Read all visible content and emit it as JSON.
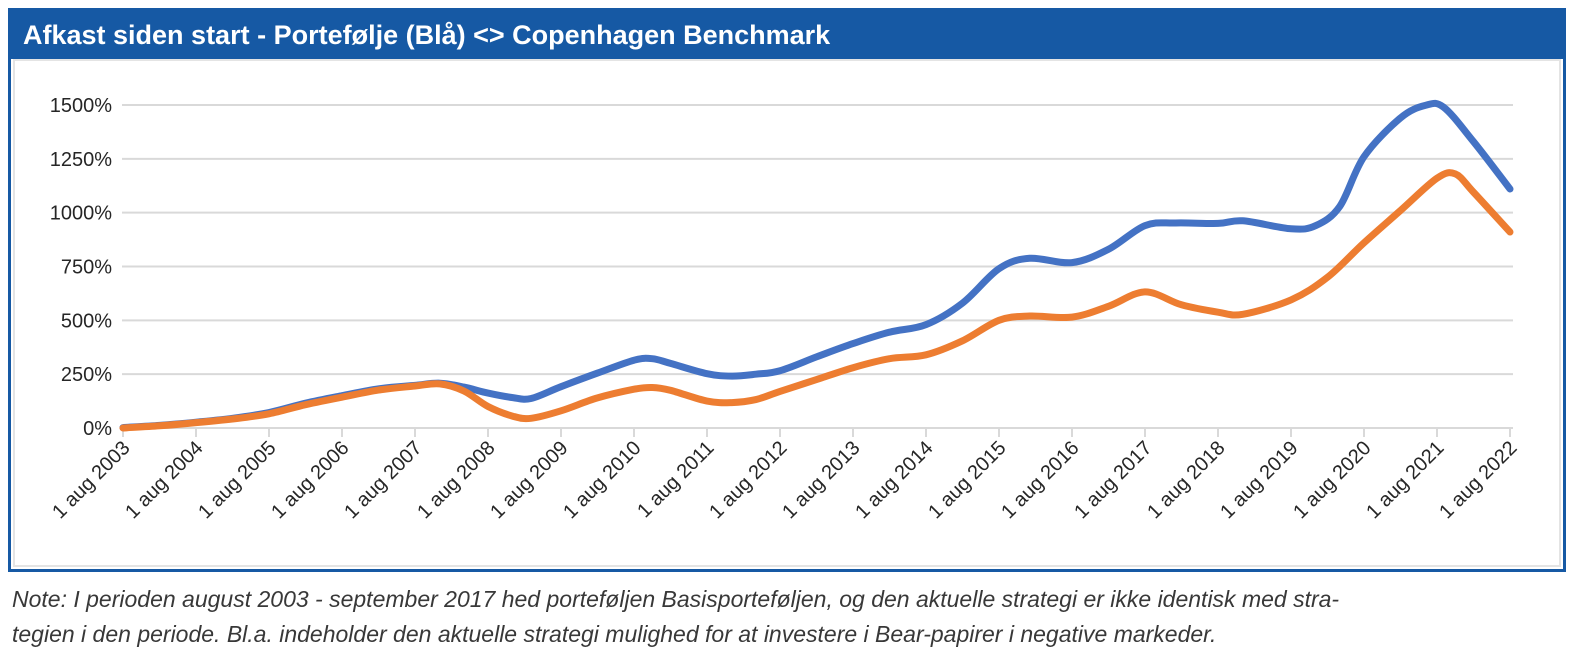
{
  "header": {
    "title": "Afkast siden start - Portefølje (Blå) <> Copenhagen Benchmark"
  },
  "note": {
    "line1": "Note: I perioden august 2003 - september 2017 hed porteføljen Basisporteføljen, og den aktuelle strategi er ikke identisk med stra-",
    "line2": "tegien i den periode. Bl.a. indeholder den aktuelle strategi mulighed for at investere i Bear-papirer i negative markeder."
  },
  "colors": {
    "header_bg": "#1659A4",
    "panel_border": "#1659A4",
    "grid": "#D9D9D9",
    "axis_text": "#262626",
    "portfolio_line": "#4472C4",
    "benchmark_line": "#ED7D31"
  },
  "chart_data": {
    "type": "line",
    "title": "Afkast siden start - Portefølje (Blå) <> Copenhagen Benchmark",
    "xlabel": "",
    "ylabel": "",
    "ylim": [
      0,
      1500
    ],
    "y_tick_labels": [
      "0%",
      "250%",
      "500%",
      "750%",
      "1000%",
      "1250%",
      "1500%"
    ],
    "x_range": [
      2003.58,
      2022.58
    ],
    "x_tick_labels": [
      "1 aug 2003",
      "1 aug 2004",
      "1 aug 2005",
      "1 aug 2006",
      "1 aug 2007",
      "1 aug 2008",
      "1 aug 2009",
      "1 aug 2010",
      "1 aug 2011",
      "1 aug 2012",
      "1 aug 2013",
      "1 aug 2014",
      "1 aug 2015",
      "1 aug 2016",
      "1 aug 2017",
      "1 aug 2018",
      "1 aug 2019",
      "1 aug 2020",
      "1 aug 2021",
      "1 aug 2022"
    ],
    "grid": true,
    "legend_position": "none",
    "series": [
      {
        "name": "Portefølje (Blå)",
        "color": "#4472C4",
        "points": [
          [
            2003.58,
            2
          ],
          [
            2004.08,
            12
          ],
          [
            2004.58,
            27
          ],
          [
            2005.08,
            45
          ],
          [
            2005.58,
            72
          ],
          [
            2006.08,
            115
          ],
          [
            2006.58,
            150
          ],
          [
            2007.08,
            182
          ],
          [
            2007.58,
            198
          ],
          [
            2007.92,
            208
          ],
          [
            2008.25,
            190
          ],
          [
            2008.58,
            162
          ],
          [
            2008.92,
            141
          ],
          [
            2009.17,
            137
          ],
          [
            2009.58,
            192
          ],
          [
            2010.08,
            255
          ],
          [
            2010.58,
            315
          ],
          [
            2010.83,
            322
          ],
          [
            2011.08,
            300
          ],
          [
            2011.58,
            252
          ],
          [
            2011.92,
            241
          ],
          [
            2012.25,
            250
          ],
          [
            2012.58,
            266
          ],
          [
            2013.08,
            330
          ],
          [
            2013.58,
            392
          ],
          [
            2014.08,
            445
          ],
          [
            2014.58,
            480
          ],
          [
            2015.08,
            580
          ],
          [
            2015.58,
            740
          ],
          [
            2016.0,
            788
          ],
          [
            2016.58,
            768
          ],
          [
            2017.08,
            830
          ],
          [
            2017.58,
            940
          ],
          [
            2018.0,
            952
          ],
          [
            2018.58,
            950
          ],
          [
            2018.92,
            962
          ],
          [
            2019.58,
            925
          ],
          [
            2019.92,
            940
          ],
          [
            2020.25,
            1030
          ],
          [
            2020.58,
            1260
          ],
          [
            2021.08,
            1440
          ],
          [
            2021.42,
            1498
          ],
          [
            2021.67,
            1490
          ],
          [
            2022.08,
            1330
          ],
          [
            2022.58,
            1110
          ]
        ]
      },
      {
        "name": "Copenhagen Benchmark",
        "color": "#ED7D31",
        "points": [
          [
            2003.58,
            0
          ],
          [
            2004.08,
            10
          ],
          [
            2004.58,
            25
          ],
          [
            2005.08,
            42
          ],
          [
            2005.58,
            66
          ],
          [
            2006.08,
            108
          ],
          [
            2006.58,
            143
          ],
          [
            2007.08,
            176
          ],
          [
            2007.58,
            195
          ],
          [
            2007.92,
            205
          ],
          [
            2008.25,
            172
          ],
          [
            2008.58,
            100
          ],
          [
            2008.92,
            55
          ],
          [
            2009.17,
            45
          ],
          [
            2009.58,
            80
          ],
          [
            2010.08,
            140
          ],
          [
            2010.58,
            180
          ],
          [
            2010.83,
            188
          ],
          [
            2011.08,
            175
          ],
          [
            2011.58,
            125
          ],
          [
            2011.92,
            118
          ],
          [
            2012.25,
            132
          ],
          [
            2012.58,
            170
          ],
          [
            2013.08,
            225
          ],
          [
            2013.58,
            280
          ],
          [
            2014.08,
            322
          ],
          [
            2014.58,
            340
          ],
          [
            2015.08,
            405
          ],
          [
            2015.58,
            500
          ],
          [
            2016.0,
            520
          ],
          [
            2016.58,
            515
          ],
          [
            2017.08,
            565
          ],
          [
            2017.58,
            632
          ],
          [
            2018.08,
            572
          ],
          [
            2018.58,
            538
          ],
          [
            2018.92,
            528
          ],
          [
            2019.58,
            595
          ],
          [
            2020.08,
            700
          ],
          [
            2020.58,
            860
          ],
          [
            2021.08,
            1010
          ],
          [
            2021.58,
            1160
          ],
          [
            2021.83,
            1180
          ],
          [
            2022.08,
            1095
          ],
          [
            2022.58,
            910
          ]
        ]
      }
    ]
  }
}
